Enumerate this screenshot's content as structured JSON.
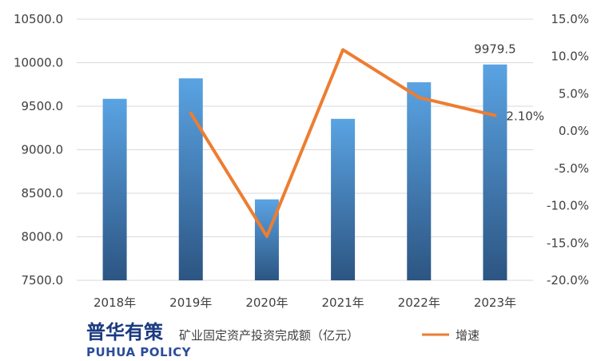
{
  "chart_data": {
    "type": "bar",
    "categories": [
      "2018年",
      "2019年",
      "2020年",
      "2021年",
      "2022年",
      "2023年"
    ],
    "series": [
      {
        "name": "矿业固定资产投资完成额（亿元）",
        "type": "bar",
        "axis": "left",
        "values": [
          9585,
          9820,
          8430,
          9355,
          9775,
          9979.5
        ]
      },
      {
        "name": "增速",
        "type": "line",
        "axis": "right",
        "values": [
          null,
          2.4,
          -14.1,
          10.9,
          4.5,
          2.1
        ]
      }
    ],
    "y_left": {
      "lim": [
        7500,
        10500
      ],
      "ticks": [
        "7500.0",
        "8000.0",
        "8500.0",
        "9000.0",
        "9500.0",
        "10000.0",
        "10500.0"
      ]
    },
    "y_right": {
      "lim": [
        -20,
        15
      ],
      "ticks": [
        "-20.0%",
        "-15.0%",
        "-10.0%",
        "-5.0%",
        "0.0%",
        "5.0%",
        "10.0%",
        "15.0%"
      ]
    },
    "data_labels": [
      {
        "series": 0,
        "index": 5,
        "text": "9979.5"
      },
      {
        "series": 1,
        "index": 5,
        "text": "2.10%"
      }
    ],
    "legend_position": "bottom",
    "grid": true,
    "colors": {
      "bar_top": "#5aa3e3",
      "bar_bottom": "#2c5582",
      "line": "#ed7d31",
      "grid": "#d9d9d9"
    }
  },
  "legend": {
    "bar_label": "矿业固定资产投资完成额（亿元）",
    "line_label": "增速"
  },
  "logo": {
    "cn": "普华有策",
    "en": "PUHUA POLICY"
  }
}
